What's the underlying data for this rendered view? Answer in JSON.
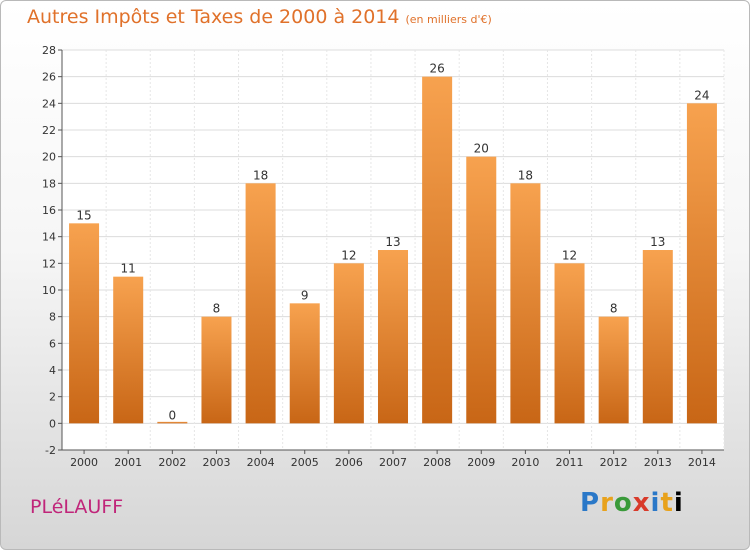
{
  "chart_data": {
    "type": "bar",
    "title": "Autres Impôts et Taxes de 2000 à 2014",
    "subtitle": "(en milliers d'€)",
    "categories": [
      "2000",
      "2001",
      "2002",
      "2003",
      "2004",
      "2005",
      "2006",
      "2007",
      "2008",
      "2009",
      "2010",
      "2011",
      "2012",
      "2013",
      "2014"
    ],
    "values": [
      15,
      11,
      0,
      8,
      18,
      9,
      12,
      13,
      26,
      20,
      18,
      12,
      8,
      13,
      24
    ],
    "ylim": [
      -2,
      28
    ],
    "yticks": [
      -2,
      0,
      2,
      4,
      6,
      8,
      10,
      12,
      14,
      16,
      18,
      20,
      22,
      24,
      26,
      28
    ],
    "grid": true,
    "bar_color": "#f08c2e"
  },
  "footer": {
    "commune": "PLéLAUFF"
  },
  "logo": {
    "letters": [
      "P",
      "r",
      "o",
      "x",
      "i",
      "t",
      "i"
    ]
  }
}
